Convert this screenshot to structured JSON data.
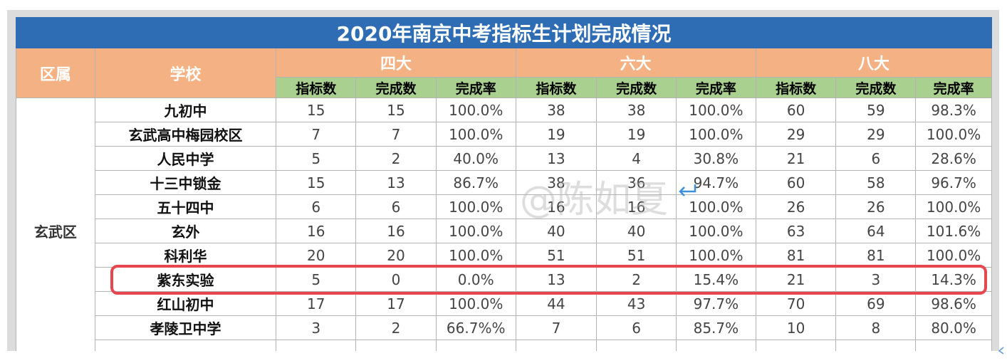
{
  "title": "2020年南京中考指标生计划完成情况",
  "headers": {
    "district": "区属",
    "school": "学校",
    "groups": [
      "四大",
      "六大",
      "八大"
    ],
    "sub": [
      "指标数",
      "完成数",
      "完成率"
    ]
  },
  "district_name": "玄武区",
  "rows": [
    {
      "school": "九初中",
      "v": [
        "15",
        "15",
        "100.0%",
        "38",
        "38",
        "100.0%",
        "60",
        "59",
        "98.3%"
      ]
    },
    {
      "school": "玄武高中梅园校区",
      "v": [
        "7",
        "7",
        "100.0%",
        "19",
        "19",
        "100.0%",
        "29",
        "29",
        "100.0%"
      ]
    },
    {
      "school": "人民中学",
      "v": [
        "5",
        "2",
        "40.0%",
        "13",
        "4",
        "30.8%",
        "21",
        "6",
        "28.6%"
      ]
    },
    {
      "school": "十三中锁金",
      "v": [
        "15",
        "13",
        "86.7%",
        "38",
        "36",
        "94.7%",
        "60",
        "58",
        "96.7%"
      ]
    },
    {
      "school": "五十四中",
      "v": [
        "6",
        "6",
        "100.0%",
        "16",
        "16",
        "100.0%",
        "26",
        "26",
        "100.0%"
      ]
    },
    {
      "school": "玄外",
      "v": [
        "16",
        "16",
        "100.0%",
        "40",
        "40",
        "100.0%",
        "63",
        "64",
        "101.6%"
      ]
    },
    {
      "school": "科利华",
      "v": [
        "20",
        "20",
        "100.0%",
        "51",
        "51",
        "100.0%",
        "81",
        "81",
        "100.0%"
      ]
    },
    {
      "school": "紫东实验",
      "v": [
        "5",
        "0",
        "0.0%",
        "13",
        "2",
        "15.4%",
        "21",
        "3",
        "14.3%"
      ]
    },
    {
      "school": "红山初中",
      "v": [
        "17",
        "17",
        "100.0%",
        "44",
        "43",
        "97.7%",
        "70",
        "69",
        "98.6%"
      ]
    },
    {
      "school": "孝陵卫中学",
      "v": [
        "3",
        "2",
        "66.7%%",
        "7",
        "6",
        "85.7%",
        "10",
        "8",
        "80.0%"
      ]
    }
  ],
  "watermark": "@陈如夏",
  "colors": {
    "title_bg": "#2e6db4",
    "group_header_bg": "#f4b183",
    "sub_header_bg": "#a9d08e",
    "highlight": "#e8464e",
    "arrow": "#3b8fd9"
  }
}
